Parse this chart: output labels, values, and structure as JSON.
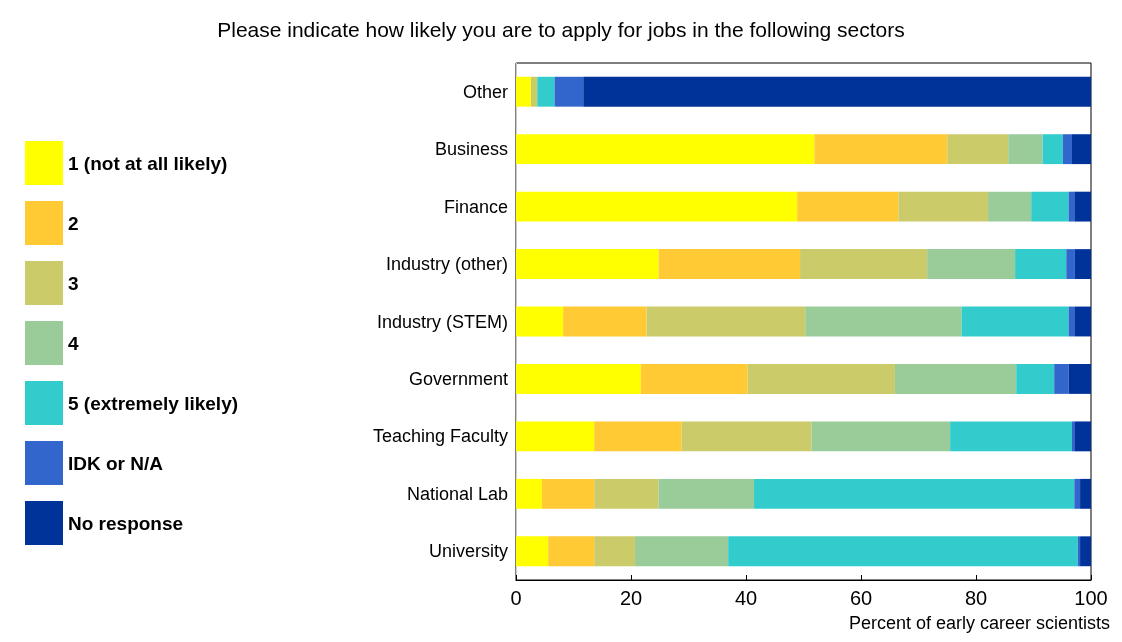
{
  "chart_data": {
    "type": "bar",
    "orientation": "horizontal",
    "stacked": true,
    "title": "Please indicate how likely you are to apply for jobs in the following sectors",
    "xlabel": "Percent of early career scientists",
    "categories": [
      "Other",
      "Business",
      "Finance",
      "Industry (other)",
      "Industry (STEM)",
      "Government",
      "Teaching Faculty",
      "National Lab",
      "University"
    ],
    "series": [
      {
        "name": "1 (not at all likely)",
        "color": "#ffff00",
        "values": [
          2.6,
          51.9,
          48.9,
          24.8,
          8.2,
          21.7,
          13.6,
          4.5,
          5.6
        ]
      },
      {
        "name": "2",
        "color": "#ffca33",
        "values": [
          0,
          23.1,
          17.6,
          24.6,
          14.5,
          18.6,
          15.2,
          9.1,
          8.0
        ]
      },
      {
        "name": "3",
        "color": "#cbcc69",
        "values": [
          1.1,
          10.6,
          15.6,
          22.1,
          27.6,
          25.6,
          22.6,
          11.2,
          7.1
        ]
      },
      {
        "name": "4",
        "color": "#9acc99",
        "values": [
          0,
          6.0,
          7.5,
          15.3,
          27.2,
          21.1,
          24.1,
          16.6,
          16.2
        ]
      },
      {
        "name": "5 (extremely likely)",
        "color": "#33cccc",
        "values": [
          3.0,
          3.5,
          6.5,
          8.9,
          18.6,
          6.6,
          21.2,
          55.7,
          60.8
        ]
      },
      {
        "name": "IDK or N/A",
        "color": "#3366cc",
        "values": [
          5.0,
          1.6,
          1.0,
          1.5,
          1.0,
          2.5,
          0.4,
          1.0,
          0.4
        ]
      },
      {
        "name": "No response",
        "color": "#003399",
        "values": [
          88.3,
          3.3,
          2.9,
          2.8,
          2.9,
          3.9,
          2.9,
          1.9,
          1.9
        ]
      }
    ],
    "xlim": [
      0,
      100
    ],
    "xticks": [
      0,
      20,
      40,
      60,
      80,
      100
    ],
    "grid": false,
    "legend": "left"
  }
}
